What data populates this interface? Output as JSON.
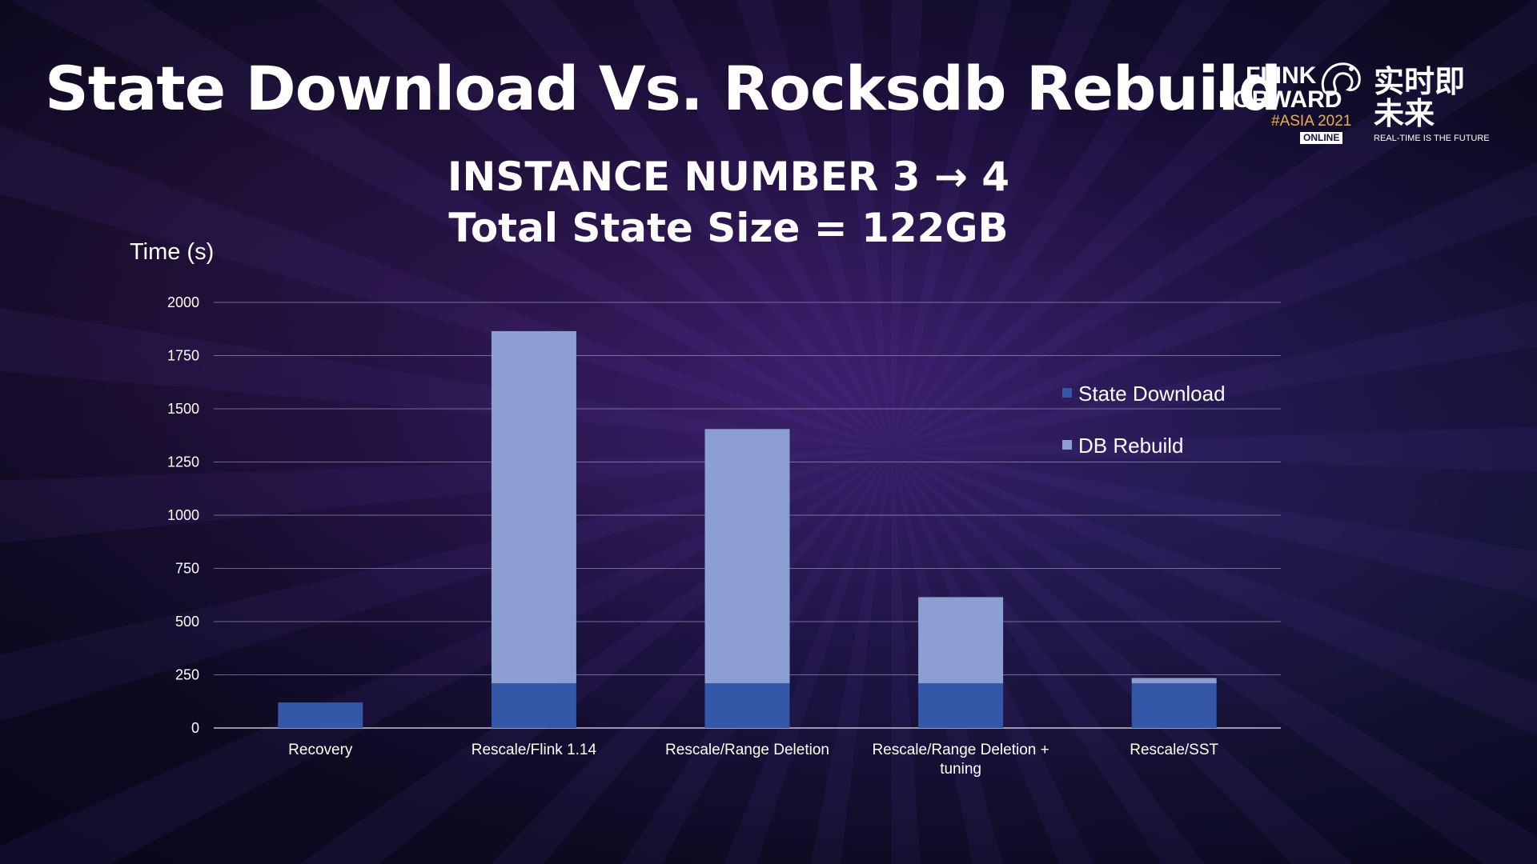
{
  "slide": {
    "title": "State Download Vs. Rocksdb Rebuild"
  },
  "logo": {
    "line1": "FLINK",
    "line2": "FORWARD",
    "line3": "#ASIA 2021",
    "badge": "ONLINE",
    "chinese": "实时即未来",
    "tagline": "REAL-TIME IS THE FUTURE",
    "icon": "squirrel-icon"
  },
  "chart_data": {
    "type": "bar",
    "stacked": true,
    "title": "INSTANCE NUMBER 3 → 4",
    "subtitle": "Total State Size = 122GB",
    "xlabel": "",
    "ylabel": "Time (s)",
    "ylim": [
      0,
      2000
    ],
    "yticks": [
      0,
      250,
      500,
      750,
      1000,
      1250,
      1500,
      1750,
      2000
    ],
    "grid": true,
    "legend_position": "right",
    "categories": [
      [
        "Recovery"
      ],
      [
        "Rescale/Flink 1.14"
      ],
      [
        "Rescale/Range Deletion"
      ],
      [
        "Rescale/Range Deletion +",
        "tuning"
      ],
      [
        "Rescale/SST"
      ]
    ],
    "series": [
      {
        "name": "State Download",
        "color": "#3457a8",
        "values": [
          120,
          210,
          210,
          210,
          210
        ]
      },
      {
        "name": "DB Rebuild",
        "color": "#8c9fd2",
        "values": [
          0,
          1655,
          1195,
          405,
          25
        ]
      }
    ]
  }
}
